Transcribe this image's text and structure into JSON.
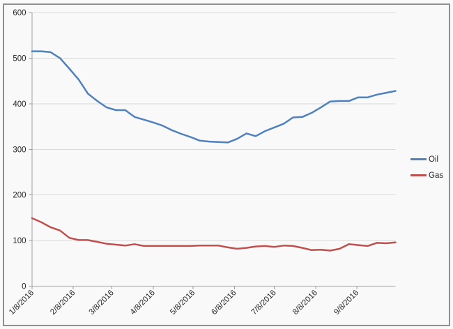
{
  "chart": {
    "background": "#f9f9f9",
    "frame_border_color": "#8f8f8f",
    "gridline_color": "#d9d9d9",
    "axis_color": "#9e9e9e",
    "text_color": "#262626",
    "title": ""
  },
  "chart_data": {
    "type": "line",
    "x": [
      "1/8/2016",
      "1/15/2016",
      "1/22/2016",
      "1/29/2016",
      "2/5/2016",
      "2/12/2016",
      "2/19/2016",
      "2/26/2016",
      "3/4/2016",
      "3/11/2016",
      "3/18/2016",
      "3/25/2016",
      "4/1/2016",
      "4/8/2016",
      "4/15/2016",
      "4/22/2016",
      "4/29/2016",
      "5/6/2016",
      "5/13/2016",
      "5/20/2016",
      "5/27/2016",
      "6/3/2016",
      "6/10/2016",
      "6/17/2016",
      "6/24/2016",
      "7/1/2016",
      "7/8/2016",
      "7/15/2016",
      "7/22/2016",
      "7/29/2016",
      "8/5/2016",
      "8/12/2016",
      "8/19/2016",
      "8/26/2016",
      "9/2/2016",
      "9/9/2016",
      "9/16/2016",
      "9/23/2016",
      "9/30/2016",
      "10/7/2016"
    ],
    "series": [
      {
        "name": "Oil",
        "color": "#4F81BD",
        "values": [
          515,
          515,
          513,
          500,
          477,
          453,
          422,
          406,
          392,
          386,
          386,
          371,
          365,
          359,
          352,
          342,
          334,
          327,
          319,
          317,
          316,
          315,
          323,
          335,
          329,
          340,
          348,
          356,
          370,
          371,
          380,
          392,
          405,
          406,
          406,
          414,
          414,
          420,
          424,
          428
        ]
      },
      {
        "name": "Gas",
        "color": "#C0504D",
        "values": [
          149,
          140,
          129,
          122,
          106,
          101,
          101,
          97,
          93,
          91,
          89,
          92,
          88,
          88,
          88,
          88,
          88,
          88,
          89,
          89,
          89,
          85,
          82,
          84,
          87,
          88,
          86,
          89,
          88,
          84,
          79,
          80,
          78,
          82,
          92,
          90,
          88,
          95,
          94,
          96
        ]
      }
    ],
    "x_tick_labels": [
      "1/8/2016",
      "2/8/2016",
      "3/8/2016",
      "4/8/2016",
      "5/8/2016",
      "6/8/2016",
      "7/8/2016",
      "8/8/2016",
      "9/8/2016"
    ],
    "y_ticks": [
      0,
      100,
      200,
      300,
      400,
      500,
      600
    ],
    "ylim": [
      0,
      600
    ],
    "grid": true,
    "legend_position": "right",
    "title": "",
    "xlabel": "",
    "ylabel": ""
  },
  "legend": {
    "items": [
      {
        "label": "Oil",
        "color": "#4F81BD"
      },
      {
        "label": "Gas",
        "color": "#C0504D"
      }
    ]
  }
}
